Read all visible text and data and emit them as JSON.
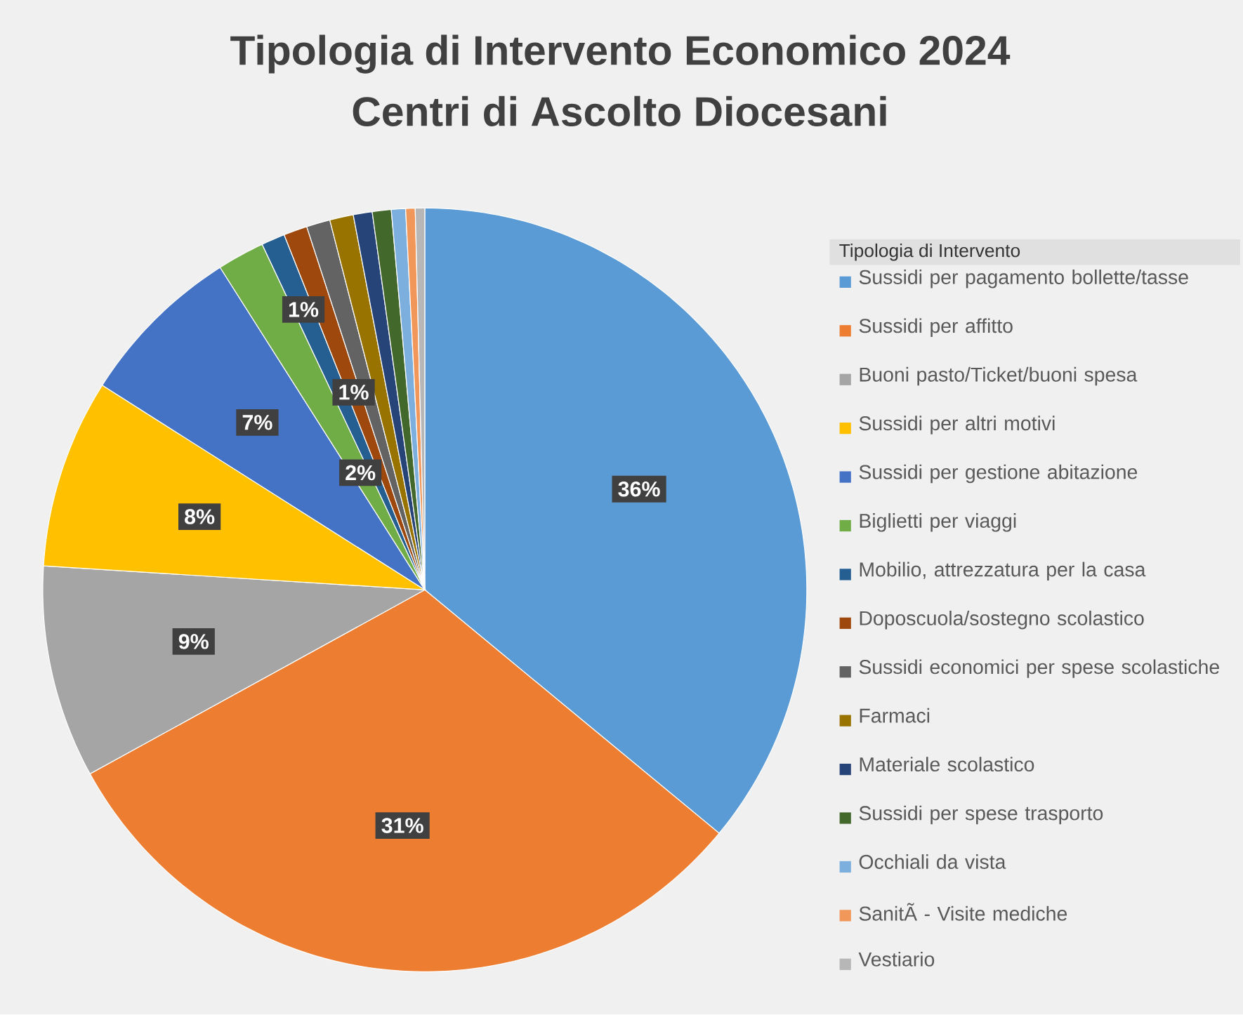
{
  "chart_data": {
    "type": "pie",
    "title": "Tipologia di Intervento Economico 2024",
    "subtitle": "Centri di Ascolto Diocesani",
    "legend_title": "Tipologia di Intervento",
    "categories": [
      "Sussidi per pagamento bollette/tasse",
      "Sussidi per affitto",
      "Buoni pasto/Ticket/buoni spesa",
      "Sussidi per altri motivi",
      "Sussidi per gestione abitazione",
      "Biglietti per viaggi",
      "Mobilio, attrezzatura per la casa",
      "Doposcuola/sostegno scolastico",
      "Sussidi economici per spese scolastiche",
      "Farmaci",
      "Materiale scolastico",
      "Sussidi per spese trasporto",
      "Occhiali da vista",
      "SanitÃ - Visite mediche",
      "Vestiario"
    ],
    "values": [
      36,
      31,
      9,
      8,
      7,
      2,
      1,
      1,
      1,
      1,
      0.8,
      0.8,
      0.6,
      0.4,
      0.4
    ],
    "value_labels": [
      "36%",
      "31%",
      "9%",
      "8%",
      "7%",
      "2%",
      "1%",
      "1%",
      null,
      null,
      null,
      null,
      null,
      null,
      null
    ],
    "colors": [
      "#5b9bd5",
      "#ed7d31",
      "#a5a5a5",
      "#ffc000",
      "#4472c4",
      "#70ad47",
      "#255e91",
      "#9e480e",
      "#636363",
      "#997300",
      "#264478",
      "#43682b",
      "#7cafdd",
      "#f1975a",
      "#b7b7b7"
    ],
    "legend": "right"
  }
}
